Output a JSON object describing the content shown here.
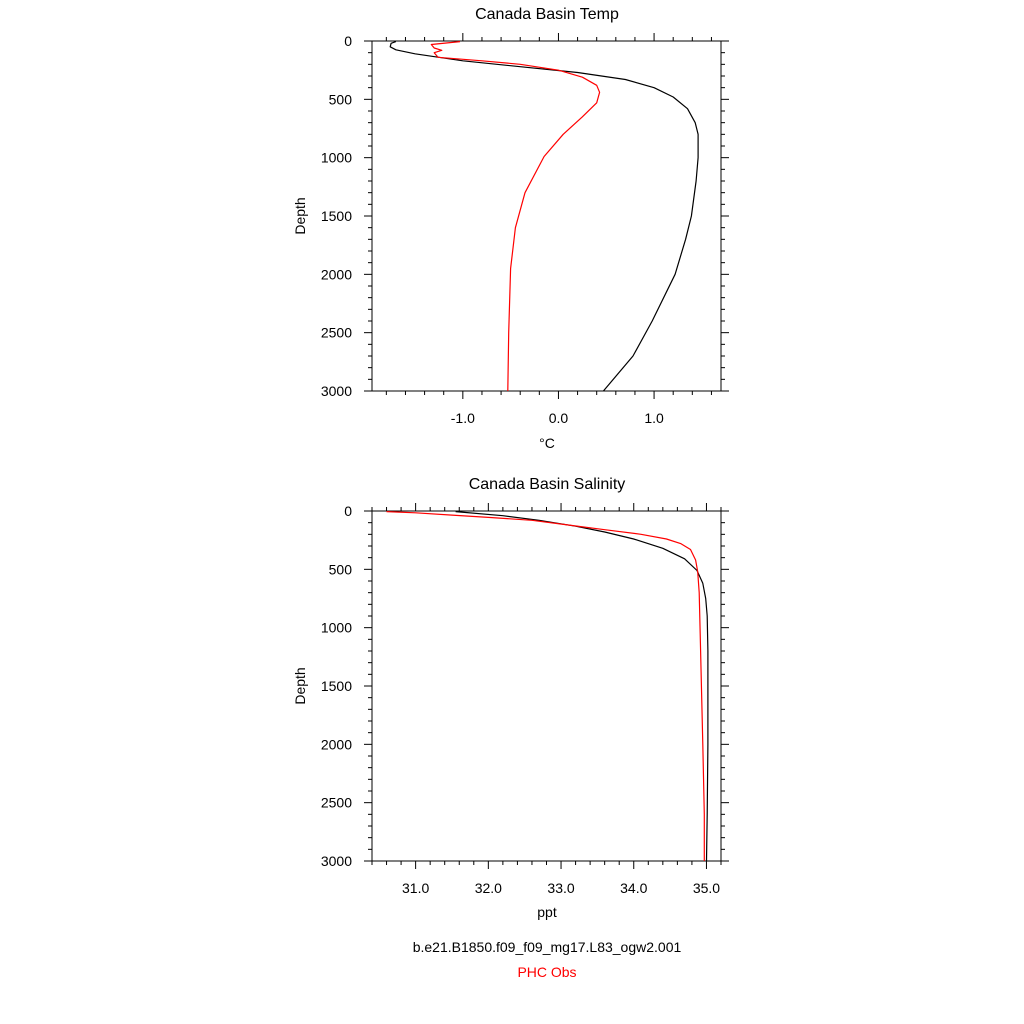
{
  "legend": {
    "model_label": "b.e21.B1850.f09_f09_mg17.L83_ogw2.001",
    "obs_label": "PHC Obs",
    "model_color": "#000000",
    "obs_color": "#ff0000"
  },
  "chart_data": [
    {
      "type": "line",
      "title": "Canada Basin Temp",
      "xlabel": "°C",
      "ylabel": "Depth",
      "xlim": [
        -1.95,
        1.7
      ],
      "ylim": [
        3000,
        0
      ],
      "y_reversed": true,
      "xticks": [
        {
          "value": -1.0,
          "label": "-1.0"
        },
        {
          "value": 0.0,
          "label": "0.0"
        },
        {
          "value": 1.0,
          "label": "1.0"
        }
      ],
      "yticks": [
        {
          "value": 0,
          "label": "0"
        },
        {
          "value": 500,
          "label": "500"
        },
        {
          "value": 1000,
          "label": "1000"
        },
        {
          "value": 1500,
          "label": "1500"
        },
        {
          "value": 2000,
          "label": "2000"
        },
        {
          "value": 2500,
          "label": "2500"
        },
        {
          "value": 3000,
          "label": "3000"
        }
      ],
      "series": [
        {
          "name": "b.e21.B1850.f09_f09_mg17.L83_ogw2.001",
          "color": "#000000",
          "points": [
            [
              -1.7,
              5
            ],
            [
              -1.75,
              20
            ],
            [
              -1.76,
              50
            ],
            [
              -1.7,
              75
            ],
            [
              -1.5,
              110
            ],
            [
              -1.0,
              170
            ],
            [
              -0.4,
              220
            ],
            [
              0.2,
              270
            ],
            [
              0.7,
              330
            ],
            [
              1.0,
              400
            ],
            [
              1.2,
              480
            ],
            [
              1.35,
              580
            ],
            [
              1.43,
              700
            ],
            [
              1.46,
              800
            ],
            [
              1.46,
              1000
            ],
            [
              1.44,
              1200
            ],
            [
              1.39,
              1500
            ],
            [
              1.33,
              1700
            ],
            [
              1.22,
              2000
            ],
            [
              0.98,
              2400
            ],
            [
              0.78,
              2700
            ],
            [
              0.47,
              3000
            ]
          ]
        },
        {
          "name": "PHC Obs",
          "color": "#ff0000",
          "points": [
            [
              -1.03,
              5
            ],
            [
              -1.33,
              30
            ],
            [
              -1.3,
              60
            ],
            [
              -1.22,
              80
            ],
            [
              -1.3,
              100
            ],
            [
              -1.26,
              140
            ],
            [
              -0.8,
              170
            ],
            [
              -0.4,
              200
            ],
            [
              0.0,
              250
            ],
            [
              0.25,
              310
            ],
            [
              0.4,
              380
            ],
            [
              0.43,
              440
            ],
            [
              0.4,
              530
            ],
            [
              0.25,
              650
            ],
            [
              0.05,
              800
            ],
            [
              -0.15,
              990
            ],
            [
              -0.35,
              1300
            ],
            [
              -0.45,
              1600
            ],
            [
              -0.5,
              1950
            ],
            [
              -0.52,
              2500
            ],
            [
              -0.53,
              3000
            ]
          ]
        }
      ]
    },
    {
      "type": "line",
      "title": "Canada Basin Salinity",
      "xlabel": "ppt",
      "ylabel": "Depth",
      "xlim": [
        30.4,
        35.2
      ],
      "ylim": [
        3000,
        0
      ],
      "y_reversed": true,
      "xticks": [
        {
          "value": 31.0,
          "label": "31.0"
        },
        {
          "value": 32.0,
          "label": "32.0"
        },
        {
          "value": 33.0,
          "label": "33.0"
        },
        {
          "value": 34.0,
          "label": "34.0"
        },
        {
          "value": 35.0,
          "label": "35.0"
        }
      ],
      "yticks": [
        {
          "value": 0,
          "label": "0"
        },
        {
          "value": 500,
          "label": "500"
        },
        {
          "value": 1000,
          "label": "1000"
        },
        {
          "value": 1500,
          "label": "1500"
        },
        {
          "value": 2000,
          "label": "2000"
        },
        {
          "value": 2500,
          "label": "2500"
        },
        {
          "value": 3000,
          "label": "3000"
        }
      ],
      "series": [
        {
          "name": "b.e21.B1850.f09_f09_mg17.L83_ogw2.001",
          "color": "#000000",
          "points": [
            [
              31.55,
              5
            ],
            [
              32.2,
              40
            ],
            [
              32.7,
              80
            ],
            [
              33.2,
              130
            ],
            [
              33.6,
              180
            ],
            [
              34.0,
              240
            ],
            [
              34.4,
              320
            ],
            [
              34.7,
              410
            ],
            [
              34.87,
              510
            ],
            [
              34.95,
              620
            ],
            [
              34.99,
              750
            ],
            [
              35.01,
              900
            ],
            [
              35.02,
              1200
            ],
            [
              35.02,
              2000
            ],
            [
              35.01,
              2600
            ],
            [
              35.0,
              3000
            ]
          ]
        },
        {
          "name": "PHC Obs",
          "color": "#ff0000",
          "points": [
            [
              30.6,
              5
            ],
            [
              31.0,
              15
            ],
            [
              31.5,
              35
            ],
            [
              32.0,
              55
            ],
            [
              32.6,
              80
            ],
            [
              33.1,
              120
            ],
            [
              33.6,
              160
            ],
            [
              34.1,
              200
            ],
            [
              34.45,
              240
            ],
            [
              34.65,
              280
            ],
            [
              34.78,
              330
            ],
            [
              34.85,
              420
            ],
            [
              34.88,
              520
            ],
            [
              34.9,
              700
            ],
            [
              34.92,
              1200
            ],
            [
              34.95,
              2000
            ],
            [
              34.97,
              2600
            ],
            [
              34.97,
              3000
            ]
          ]
        }
      ]
    }
  ]
}
